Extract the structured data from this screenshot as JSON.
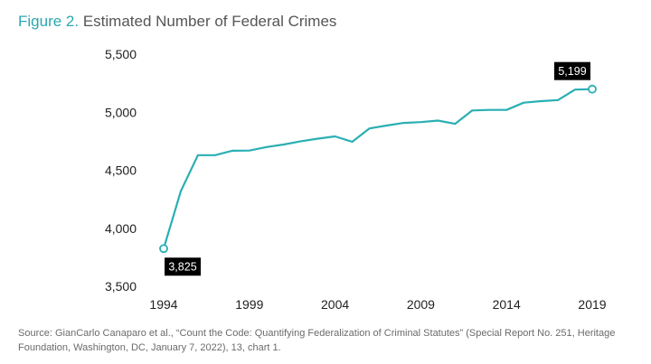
{
  "title": {
    "figure_label": "Figure 2.",
    "text": "Estimated Number of Federal Crimes"
  },
  "chart_data": {
    "type": "line",
    "title": "Estimated Number of Federal Crimes",
    "xlabel": "",
    "ylabel": "",
    "xlim": [
      1994,
      2019
    ],
    "ylim": [
      3500,
      5500
    ],
    "x_ticks": [
      1994,
      1999,
      2004,
      2009,
      2014,
      2019
    ],
    "x_tick_labels": [
      "1994",
      "1999",
      "2004",
      "2009",
      "2014",
      "2019"
    ],
    "y_ticks": [
      3500,
      4000,
      4500,
      5000,
      5500
    ],
    "y_tick_labels": [
      "3,500",
      "4,000",
      "4,500",
      "5,000",
      "5,500"
    ],
    "grid": false,
    "series": [
      {
        "name": "Estimated Number of Federal Crimes",
        "color": "#2aafb3",
        "x": [
          1994,
          1995,
          1996,
          1997,
          1998,
          1999,
          2000,
          2001,
          2002,
          2003,
          2004,
          2005,
          2006,
          2007,
          2008,
          2009,
          2010,
          2011,
          2012,
          2013,
          2014,
          2015,
          2016,
          2017,
          2018,
          2019
        ],
        "values": [
          3825,
          4320,
          4630,
          4630,
          4668,
          4670,
          4700,
          4722,
          4750,
          4772,
          4792,
          4745,
          4860,
          4885,
          4908,
          4915,
          4928,
          4900,
          5015,
          5020,
          5020,
          5082,
          5095,
          5105,
          5195,
          5199
        ]
      }
    ],
    "annotations": [
      {
        "x": 1994,
        "y": 3825,
        "label": "3,825",
        "position": "below-right"
      },
      {
        "x": 2019,
        "y": 5199,
        "label": "5,199",
        "position": "above-left"
      }
    ]
  },
  "source": {
    "text": "Source: GianCarlo Canaparo et al., “Count the Code: Quantifying Federalization of Criminal Statutes” (Special Report No. 251, Heritage Foundation, Washington, DC, January 7, 2022), 13, chart 1."
  }
}
